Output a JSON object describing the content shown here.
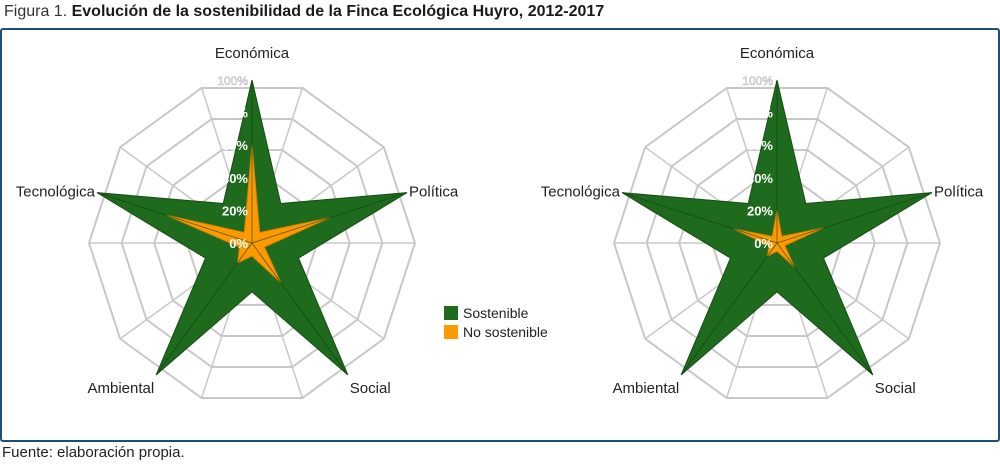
{
  "title": {
    "prefix": "Figura 1. ",
    "main": "Evolución de la sostenibilidad de la Finca Ecológica Huyro, 2012-2017"
  },
  "source": "Fuente: elaboración propia.",
  "colors": {
    "sostenible": "#1e6b1e",
    "no_sostenible": "#ff9900",
    "grid": "#c8c8c8",
    "frame": "#1f4e79"
  },
  "legend": [
    {
      "label": "Sostenible",
      "color": "#1e6b1e"
    },
    {
      "label": "No sostenible",
      "color": "#ff9900"
    }
  ],
  "chart_data": [
    {
      "type": "radar",
      "axes": [
        "Económica",
        "Política",
        "Social",
        "Ambiental",
        "Tecnológica"
      ],
      "ticks": [
        "0%",
        "20%",
        "40%",
        "60%",
        "80%",
        "100%"
      ],
      "ylim": [
        0,
        100
      ],
      "series": [
        {
          "name": "Sostenible",
          "values": [
            100,
            100,
            100,
            100,
            100
          ],
          "inner_values": [
            30,
            30,
            30,
            30,
            30
          ]
        },
        {
          "name": "No sostenible",
          "values": [
            60,
            50,
            30,
            15,
            55
          ],
          "inner_values": [
            8,
            8,
            8,
            8,
            8
          ]
        }
      ]
    },
    {
      "type": "radar",
      "axes": [
        "Económica",
        "Política",
        "Social",
        "Ambiental",
        "Tecnológica"
      ],
      "ticks": [
        "0%",
        "20%",
        "40%",
        "60%",
        "80%",
        "100%"
      ],
      "ylim": [
        0,
        100
      ],
      "series": [
        {
          "name": "Sostenible",
          "values": [
            100,
            100,
            100,
            100,
            100
          ],
          "inner_values": [
            30,
            30,
            30,
            30,
            30
          ]
        },
        {
          "name": "No sostenible",
          "values": [
            20,
            30,
            18,
            10,
            28
          ],
          "inner_values": [
            5,
            5,
            5,
            5,
            5
          ]
        }
      ]
    }
  ]
}
